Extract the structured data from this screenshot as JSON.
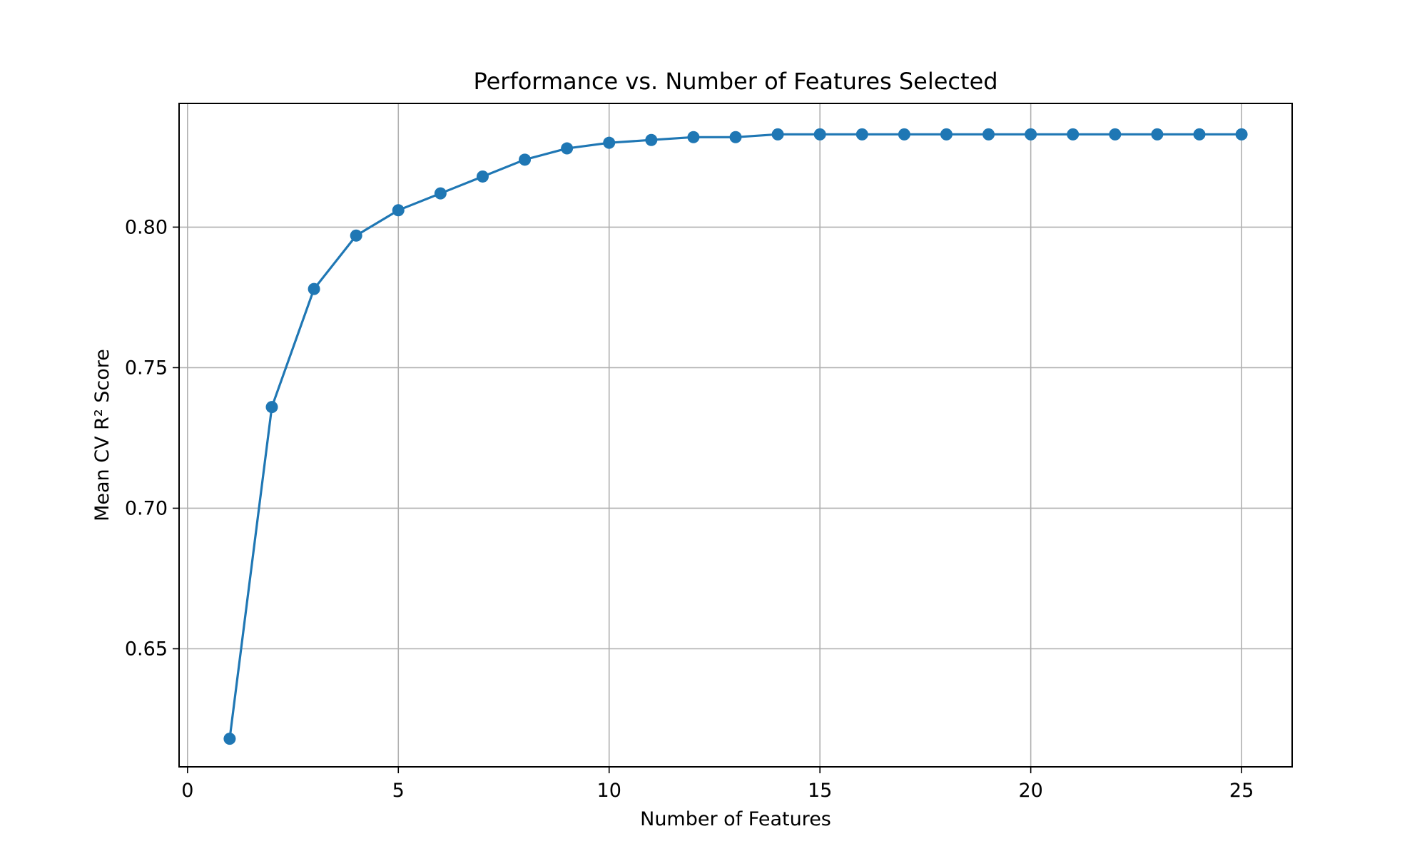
{
  "chart_data": {
    "type": "line",
    "title": "Performance vs. Number of Features Selected",
    "xlabel": "Number of Features",
    "ylabel": "Mean CV R² Score",
    "xlim": [
      -0.2,
      26.2
    ],
    "ylim": [
      0.608,
      0.844
    ],
    "xticks": [
      0,
      5,
      10,
      15,
      20,
      25
    ],
    "yticks": [
      0.65,
      0.7,
      0.75,
      0.8
    ],
    "xtick_labels": [
      "0",
      "5",
      "10",
      "15",
      "20",
      "25"
    ],
    "ytick_labels": [
      "0.65",
      "0.70",
      "0.75",
      "0.80"
    ],
    "grid": true,
    "legend": "none",
    "marker": "circle",
    "color": "#1f77b4",
    "series": [
      {
        "x": [
          1,
          2,
          3,
          4,
          5,
          6,
          7,
          8,
          9,
          10,
          11,
          12,
          13,
          14,
          15,
          16,
          17,
          18,
          19,
          20,
          21,
          22,
          23,
          24,
          25
        ],
        "values": [
          0.618,
          0.736,
          0.778,
          0.797,
          0.806,
          0.812,
          0.818,
          0.824,
          0.828,
          0.83,
          0.831,
          0.832,
          0.832,
          0.833,
          0.833,
          0.833,
          0.833,
          0.833,
          0.833,
          0.833,
          0.833,
          0.833,
          0.833,
          0.833,
          0.833
        ]
      }
    ]
  }
}
